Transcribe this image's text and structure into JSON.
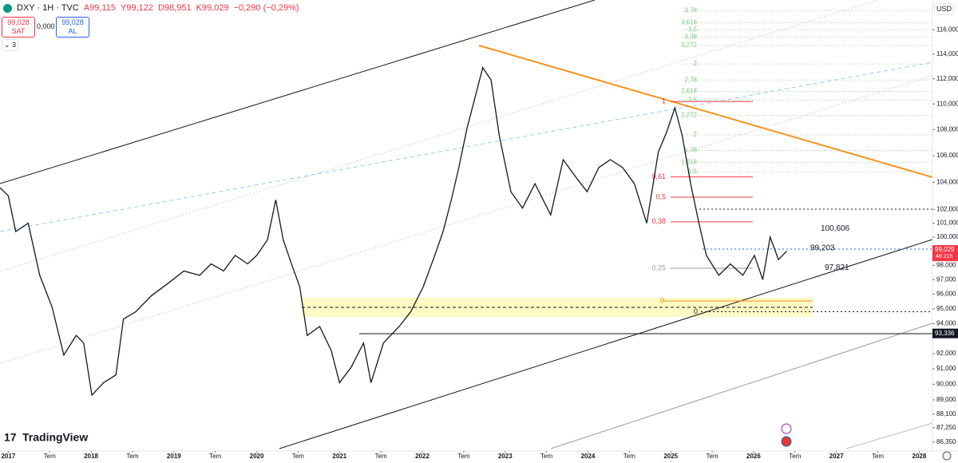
{
  "header": {
    "symbol": "DXY · 1H · TVC",
    "open": "A99,115",
    "high": "Y99,122",
    "low": "D98,951",
    "close": "K99,029",
    "change": "−0,290 (−0,29%)",
    "sell_price": "99,028",
    "sell": "SAT",
    "spread": "0,000",
    "buy_price": "99,028",
    "buy": "AL",
    "indicators": "3",
    "currency": "USD",
    "brand": "TradingView"
  },
  "chart_data": {
    "type": "line",
    "log_scale": true,
    "color": "#131722",
    "xlim": [
      2016.9,
      2028.16
    ],
    "ylim": [
      85.8,
      118.5
    ],
    "x": [
      2016.9,
      2017.0,
      2017.09,
      2017.24,
      2017.38,
      2017.53,
      2017.67,
      2017.82,
      2017.91,
      2018.01,
      2018.15,
      2018.3,
      2018.39,
      2018.54,
      2018.73,
      2018.92,
      2019.12,
      2019.31,
      2019.45,
      2019.6,
      2019.74,
      2019.89,
      2020.0,
      2020.13,
      2020.23,
      2020.32,
      2020.42,
      2020.52,
      2020.61,
      2020.76,
      2020.9,
      2021.0,
      2021.14,
      2021.29,
      2021.38,
      2021.53,
      2021.72,
      2021.86,
      2022.01,
      2022.15,
      2022.25,
      2022.35,
      2022.44,
      2022.54,
      2022.64,
      2022.73,
      2022.83,
      2022.93,
      2023.07,
      2023.21,
      2023.36,
      2023.55,
      2023.7,
      2023.84,
      2023.99,
      2024.13,
      2024.27,
      2024.42,
      2024.56,
      2024.71,
      2024.85,
      2024.95,
      2025.05,
      2025.14,
      2025.24,
      2025.34,
      2025.43,
      2025.58,
      2025.72,
      2025.87,
      2026.01,
      2026.11,
      2026.2,
      2026.3,
      2026.4
    ],
    "values": [
      103.6,
      103.0,
      100.4,
      101.0,
      97.3,
      95.1,
      91.9,
      93.2,
      92.7,
      89.3,
      90.1,
      90.6,
      94.3,
      94.8,
      95.9,
      96.7,
      97.6,
      97.3,
      98.1,
      97.6,
      98.7,
      98.1,
      98.7,
      99.8,
      102.7,
      99.8,
      98.1,
      96.5,
      93.2,
      93.8,
      92.2,
      90.1,
      91.1,
      92.7,
      90.1,
      92.7,
      93.8,
      94.8,
      96.5,
      98.7,
      100.4,
      102.7,
      105.1,
      108.1,
      110.6,
      112.9,
      111.9,
      107.5,
      103.3,
      102.1,
      103.9,
      101.6,
      105.7,
      104.5,
      103.3,
      105.1,
      105.7,
      105.1,
      103.9,
      101.0,
      106.3,
      107.8,
      109.7,
      107.5,
      103.9,
      101.0,
      98.7,
      97.3,
      98.1,
      97.3,
      98.7,
      97.0,
      100.0,
      98.4,
      99.0
    ],
    "yticks": [
      {
        "value": 116,
        "label": "116,000"
      },
      {
        "value": 114,
        "label": "114,000"
      },
      {
        "value": 112,
        "label": "112,000"
      },
      {
        "value": 110,
        "label": "110,000"
      },
      {
        "value": 108,
        "label": "108,000"
      },
      {
        "value": 106,
        "label": "106,000"
      },
      {
        "value": 104,
        "label": "104,000"
      },
      {
        "value": 102,
        "label": "102,000"
      },
      {
        "value": 101,
        "label": "101,000"
      },
      {
        "value": 100,
        "label": "100,000"
      },
      {
        "value": 98,
        "label": "98,000"
      },
      {
        "value": 97,
        "label": "97,000"
      },
      {
        "value": 96,
        "label": "96,000"
      },
      {
        "value": 95,
        "label": "95,000"
      },
      {
        "value": 94,
        "label": "94,000"
      },
      {
        "value": 92,
        "label": "92,000"
      },
      {
        "value": 91,
        "label": "91,000"
      },
      {
        "value": 90,
        "label": "90,000"
      },
      {
        "value": 89,
        "label": "89,000"
      },
      {
        "value": 88.1,
        "label": "88,100"
      },
      {
        "value": 87.25,
        "label": "87,250"
      },
      {
        "value": 86.35,
        "label": "86,350"
      }
    ],
    "xticks": [
      2017,
      {
        "value": 2017.5,
        "label": "Tem"
      },
      2018,
      {
        "value": 2018.5,
        "label": "Tem"
      },
      2019,
      {
        "value": 2019.5,
        "label": "Tem"
      },
      2020,
      {
        "value": 2020.5,
        "label": "Tem"
      },
      2021,
      {
        "value": 2021.5,
        "label": "Tem"
      },
      2022,
      {
        "value": 2022.5,
        "label": "Tem"
      },
      2023,
      {
        "value": 2023.5,
        "label": "Tem"
      },
      2024,
      {
        "value": 2024.5,
        "label": "Tem"
      },
      2025,
      {
        "value": 2025.5,
        "label": "Tem"
      },
      2026,
      {
        "value": 2026.5,
        "label": "Tem"
      },
      2027,
      {
        "value": 2027.5,
        "label": "Tem"
      },
      2028
    ],
    "price_tag": {
      "value": 99.029,
      "label": "99,029",
      "countdown": "4d 21h"
    },
    "level_tag": {
      "value": 93.336,
      "label": "93,336"
    },
    "annotations": [
      {
        "value": 100.606,
        "label": "100,606"
      },
      {
        "value": 99.203,
        "label": "99,203"
      },
      {
        "value": 97.821,
        "label": "97,821"
      }
    ],
    "fib_levels": [
      {
        "label": "1",
        "price": 110.2,
        "color": "#f23645"
      },
      {
        "label": "0,61",
        "price": 104.4,
        "color": "#f23645"
      },
      {
        "label": "0,5",
        "price": 102.9,
        "color": "#f23645"
      },
      {
        "label": "0,38",
        "price": 101.1,
        "color": "#f23645"
      },
      {
        "label": "0,25",
        "price": 97.8,
        "color": "#9e9e9e"
      },
      {
        "label": "0",
        "price": 94.8,
        "color": "#131722"
      }
    ],
    "fib_extensions": [
      {
        "label": "3,78",
        "price": 117.6
      },
      {
        "label": "3,618",
        "price": 116.6
      },
      {
        "label": "3,5",
        "price": 116.0
      },
      {
        "label": "3,38",
        "price": 115.4
      },
      {
        "label": "3,272",
        "price": 114.7
      },
      {
        "label": "3",
        "price": 113.2
      },
      {
        "label": "2,78",
        "price": 111.9
      },
      {
        "label": "2,618",
        "price": 111.0
      },
      {
        "label": "2,5",
        "price": 110.3
      },
      {
        "label": "2,272",
        "price": 109.1
      },
      {
        "label": "2",
        "price": 107.6
      },
      {
        "label": "1,78",
        "price": 106.4
      },
      {
        "label": "1,618",
        "price": 105.5
      },
      {
        "label": "1,5",
        "price": 104.8
      }
    ],
    "zone_label": "0"
  }
}
